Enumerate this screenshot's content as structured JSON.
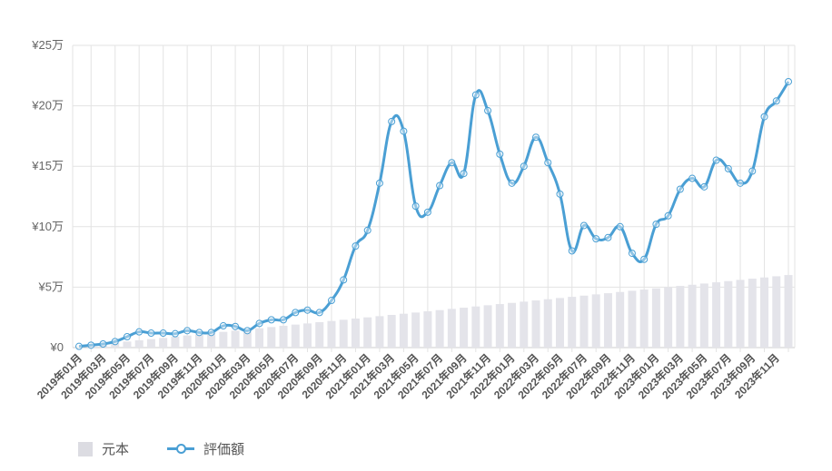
{
  "chart_data": {
    "type": "bar+line",
    "categories": [
      "2019年01月",
      "2019年02月",
      "2019年03月",
      "2019年04月",
      "2019年05月",
      "2019年06月",
      "2019年07月",
      "2019年08月",
      "2019年09月",
      "2019年10月",
      "2019年11月",
      "2019年12月",
      "2020年01月",
      "2020年02月",
      "2020年03月",
      "2020年04月",
      "2020年05月",
      "2020年06月",
      "2020年07月",
      "2020年08月",
      "2020年09月",
      "2020年10月",
      "2020年11月",
      "2020年12月",
      "2021年01月",
      "2021年02月",
      "2021年03月",
      "2021年04月",
      "2021年05月",
      "2021年06月",
      "2021年07月",
      "2021年08月",
      "2021年09月",
      "2021年10月",
      "2021年11月",
      "2021年12月",
      "2022年01月",
      "2022年02月",
      "2022年03月",
      "2022年04月",
      "2022年05月",
      "2022年06月",
      "2022年07月",
      "2022年08月",
      "2022年09月",
      "2022年10月",
      "2022年11月",
      "2022年12月",
      "2023年01月",
      "2023年02月",
      "2023年03月",
      "2023年04月",
      "2023年05月",
      "2023年06月",
      "2023年07月",
      "2023年08月",
      "2023年09月",
      "2023年10月",
      "2023年11月",
      "2023年12月"
    ],
    "series": [
      {
        "name": "元本",
        "type": "bar",
        "color": "#e4e4ea",
        "values": [
          1000,
          2000,
          3000,
          4000,
          5000,
          6000,
          7000,
          8000,
          9000,
          10000,
          11000,
          12000,
          13000,
          14000,
          15000,
          16000,
          17000,
          18000,
          19000,
          20000,
          21000,
          22000,
          23000,
          24000,
          25000,
          26000,
          27000,
          28000,
          29000,
          30000,
          31000,
          32000,
          33000,
          34000,
          35000,
          36000,
          37000,
          38000,
          39000,
          40000,
          41000,
          42000,
          43000,
          44000,
          45000,
          46000,
          47000,
          48000,
          49000,
          50000,
          51000,
          52000,
          53000,
          54000,
          55000,
          56000,
          57000,
          58000,
          59000,
          60000
        ]
      },
      {
        "name": "評価額",
        "type": "line",
        "color": "#4a9fd4",
        "values": [
          1000,
          2000,
          3000,
          5000,
          9000,
          13000,
          12000,
          12000,
          11500,
          14000,
          12500,
          12500,
          18000,
          17500,
          14000,
          20000,
          23000,
          23000,
          29000,
          31000,
          29000,
          39000,
          56000,
          84000,
          97000,
          136000,
          187000,
          179000,
          117000,
          112000,
          134000,
          153000,
          144000,
          209000,
          196000,
          160000,
          136000,
          150000,
          174000,
          153000,
          127000,
          80000,
          101000,
          90000,
          91000,
          100000,
          78000,
          73000,
          102000,
          109000,
          131000,
          140000,
          133000,
          155000,
          148000,
          136000,
          146000,
          191000,
          204000,
          220000
        ]
      }
    ],
    "yticks": [
      "¥0",
      "¥5万",
      "¥10万",
      "¥15万",
      "¥20万",
      "¥25万"
    ],
    "ylim": [
      0,
      250000
    ],
    "xtick_every": 2,
    "grid": true,
    "legend": "bottom-left"
  }
}
